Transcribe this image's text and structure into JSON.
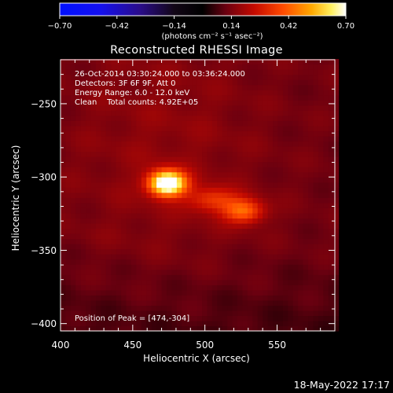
{
  "chart_data": {
    "type": "heatmap",
    "title": "Reconstructed RHESSI Image",
    "xlabel": "Heliocentric X (arcsec)",
    "ylabel": "Heliocentric Y (arcsec)",
    "xlim": [
      400,
      590
    ],
    "ylim": [
      -405,
      -220
    ],
    "xticks": [
      400,
      450,
      500,
      550
    ],
    "yticks": [
      -250,
      -300,
      -350,
      -400
    ],
    "xtick_labels": [
      "400",
      "450",
      "500",
      "550"
    ],
    "ytick_labels": [
      "−250",
      "−300",
      "−350",
      "−400"
    ],
    "colorbar": {
      "range": [
        -0.7,
        0.7
      ],
      "ticks": [
        -0.7,
        -0.42,
        -0.14,
        0.14,
        0.42,
        0.7
      ],
      "tick_labels": [
        "−0.70",
        "−0.42",
        "−0.14",
        "0.14",
        "0.42",
        "0.70"
      ],
      "unit_label": "(photons cm⁻² s⁻¹ asec⁻²)",
      "colormap": "black-blue-purple-red-orange-yellow-white"
    },
    "sources": [
      {
        "x": 474,
        "y": -304,
        "peak": 0.7,
        "sigma_x": 9,
        "sigma_y": 6
      },
      {
        "x": 527,
        "y": -323,
        "peak": 0.3,
        "sigma_x": 10,
        "sigma_y": 6
      },
      {
        "x": 505,
        "y": -315,
        "peak": 0.2,
        "sigma_x": 12,
        "sigma_y": 6
      }
    ],
    "background_level": 0.12,
    "annotations": {
      "time_range": "26-Oct-2014 03:30:24.000 to 03:36:24.000",
      "detectors": "Detectors: 3F 6F 9F, Att 0",
      "energy_range": "Energy Range: 6.0 - 12.0 keV",
      "clean": "Clean    Total counts: 4.92E+05",
      "peak_position": "Position of Peak = [474,-304]"
    }
  },
  "footer": {
    "timestamp": "18-May-2022 17:17"
  }
}
